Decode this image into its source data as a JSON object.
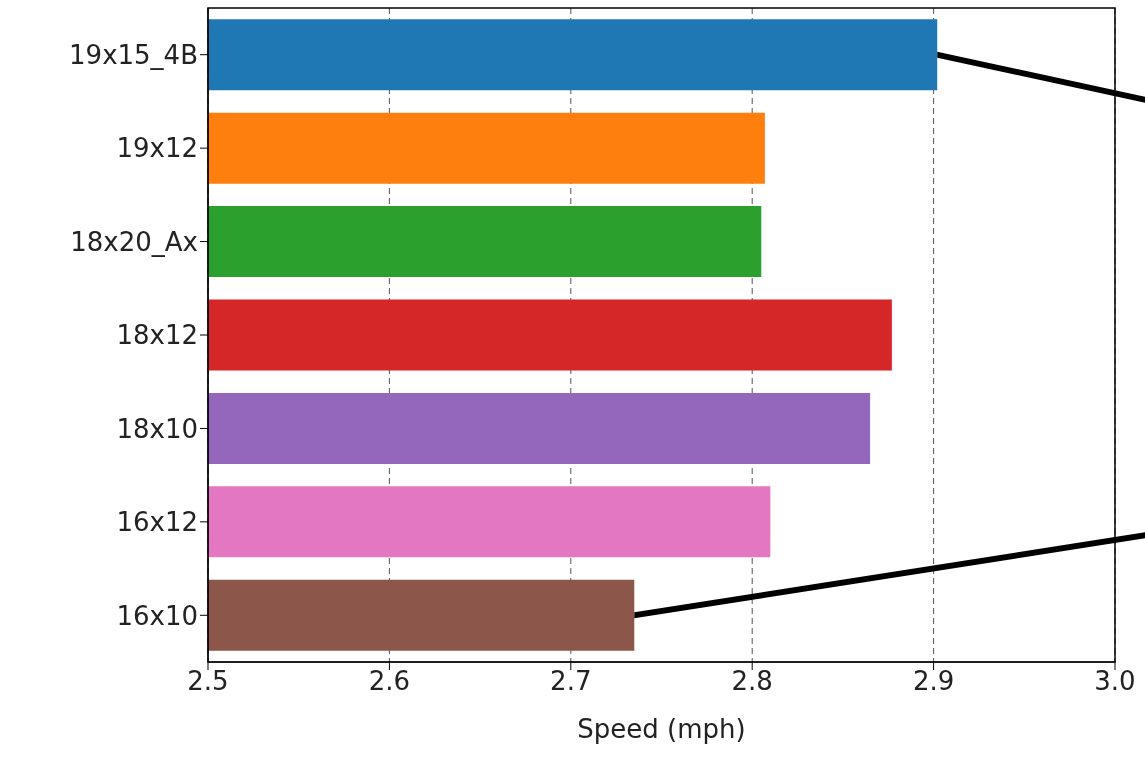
{
  "chart_data": {
    "type": "bar",
    "orientation": "horizontal",
    "xlabel": "Speed (mph)",
    "categories": [
      "19x15_4B",
      "19x12",
      "18x20_Ax",
      "18x12",
      "18x10",
      "16x12",
      "16x10"
    ],
    "values": [
      2.902,
      2.807,
      2.805,
      2.877,
      2.865,
      2.81,
      2.735
    ],
    "colors": [
      "#1f77b4",
      "#ff7f0e",
      "#2ca02c",
      "#d62728",
      "#9467bd",
      "#e377c2",
      "#8c564b"
    ],
    "xlim": [
      2.5,
      3.0
    ],
    "xticks": [
      {
        "value": 2.5,
        "label": "2.5"
      },
      {
        "value": 2.6,
        "label": "2.6"
      },
      {
        "value": 2.7,
        "label": "2.7"
      },
      {
        "value": 2.8,
        "label": "2.8"
      },
      {
        "value": 2.9,
        "label": "2.9"
      },
      {
        "value": 3.0,
        "label": "3.0"
      }
    ],
    "grid": "x"
  }
}
